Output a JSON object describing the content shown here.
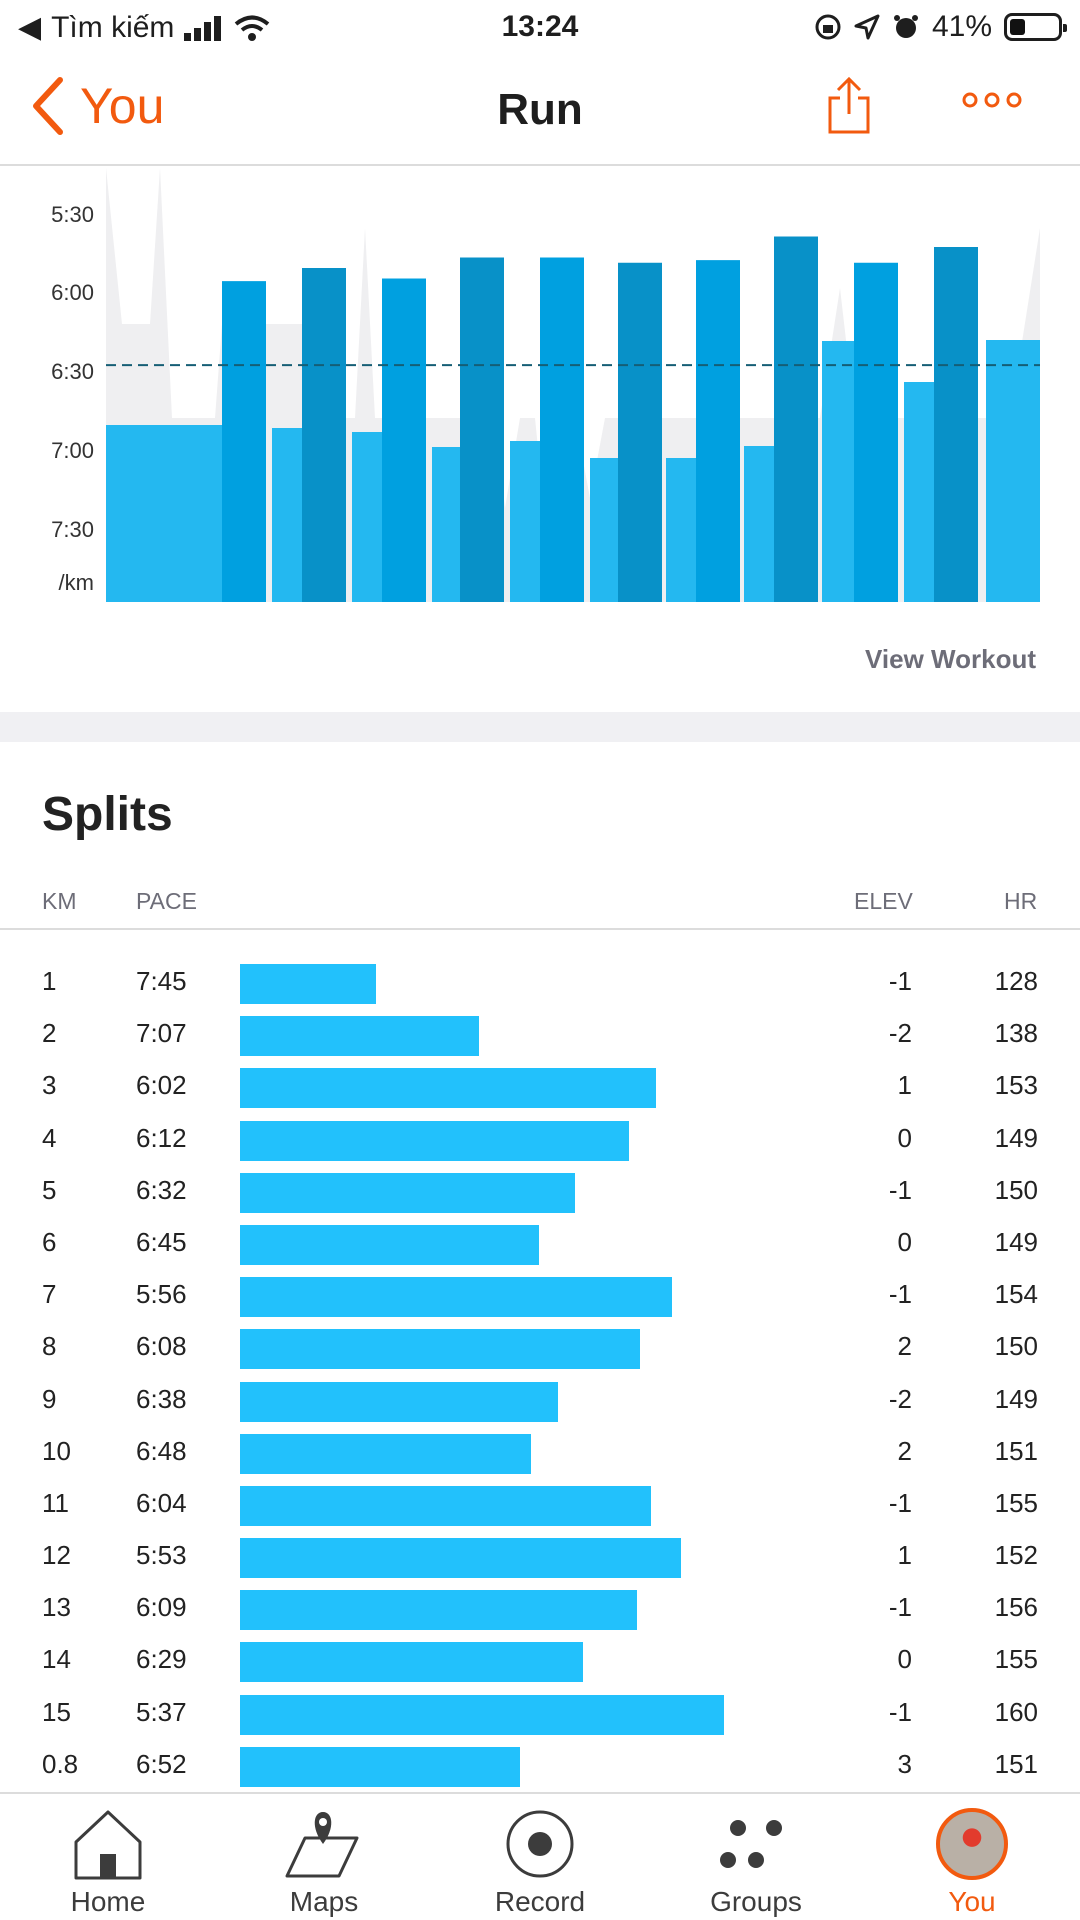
{
  "status_bar": {
    "carrier": "Tìm kiếm",
    "time": "13:24",
    "battery": "41%",
    "battery_level": 0.41
  },
  "nav": {
    "back_label": "You",
    "title": "Run"
  },
  "chart": {
    "y_ticks": [
      "5:30",
      "6:00",
      "6:30",
      "7:00",
      "7:30",
      "/km"
    ],
    "view_workout": "View Workout"
  },
  "chart_data": {
    "type": "bar",
    "ylabel": "/km",
    "y_ticks": [
      "5:30",
      "6:00",
      "6:30",
      "7:00",
      "7:30"
    ],
    "reference_pace": "6:31",
    "series": [
      {
        "values": [
          "5:59",
          "5:54",
          "5:58",
          "5:50",
          "5:50",
          "5:52",
          "5:51",
          "5:42",
          "5:52",
          "5:46"
        ]
      }
    ]
  },
  "splits": {
    "title": "Splits",
    "headers": {
      "km": "KM",
      "pace": "PACE",
      "elev": "ELEV",
      "hr": "HR"
    },
    "rows": [
      {
        "km": "1",
        "pace": "7:45",
        "elev": "-1",
        "hr": "128"
      },
      {
        "km": "2",
        "pace": "7:07",
        "elev": "-2",
        "hr": "138"
      },
      {
        "km": "3",
        "pace": "6:02",
        "elev": "1",
        "hr": "153"
      },
      {
        "km": "4",
        "pace": "6:12",
        "elev": "0",
        "hr": "149"
      },
      {
        "km": "5",
        "pace": "6:32",
        "elev": "-1",
        "hr": "150"
      },
      {
        "km": "6",
        "pace": "6:45",
        "elev": "0",
        "hr": "149"
      },
      {
        "km": "7",
        "pace": "5:56",
        "elev": "-1",
        "hr": "154"
      },
      {
        "km": "8",
        "pace": "6:08",
        "elev": "2",
        "hr": "150"
      },
      {
        "km": "9",
        "pace": "6:38",
        "elev": "-2",
        "hr": "149"
      },
      {
        "km": "10",
        "pace": "6:48",
        "elev": "2",
        "hr": "151"
      },
      {
        "km": "11",
        "pace": "6:04",
        "elev": "-1",
        "hr": "155"
      },
      {
        "km": "12",
        "pace": "5:53",
        "elev": "1",
        "hr": "152"
      },
      {
        "km": "13",
        "pace": "6:09",
        "elev": "-1",
        "hr": "156"
      },
      {
        "km": "14",
        "pace": "6:29",
        "elev": "0",
        "hr": "155"
      },
      {
        "km": "15",
        "pace": "5:37",
        "elev": "-1",
        "hr": "160"
      },
      {
        "km": "0.8",
        "pace": "6:52",
        "elev": "3",
        "hr": "151"
      }
    ]
  },
  "tabs": [
    {
      "label": "Home",
      "icon": "home-icon"
    },
    {
      "label": "Maps",
      "icon": "map-pin-icon"
    },
    {
      "label": "Record",
      "icon": "record-icon"
    },
    {
      "label": "Groups",
      "icon": "groups-icon"
    },
    {
      "label": "You",
      "icon": "avatar",
      "active": true
    }
  ],
  "colors": {
    "accent": "#f25a0f",
    "bar_dark": "#0891c8",
    "bar_mid": "#00a0e0",
    "bar_light": "#24b8f0",
    "split_bar": "#22c1fc"
  }
}
